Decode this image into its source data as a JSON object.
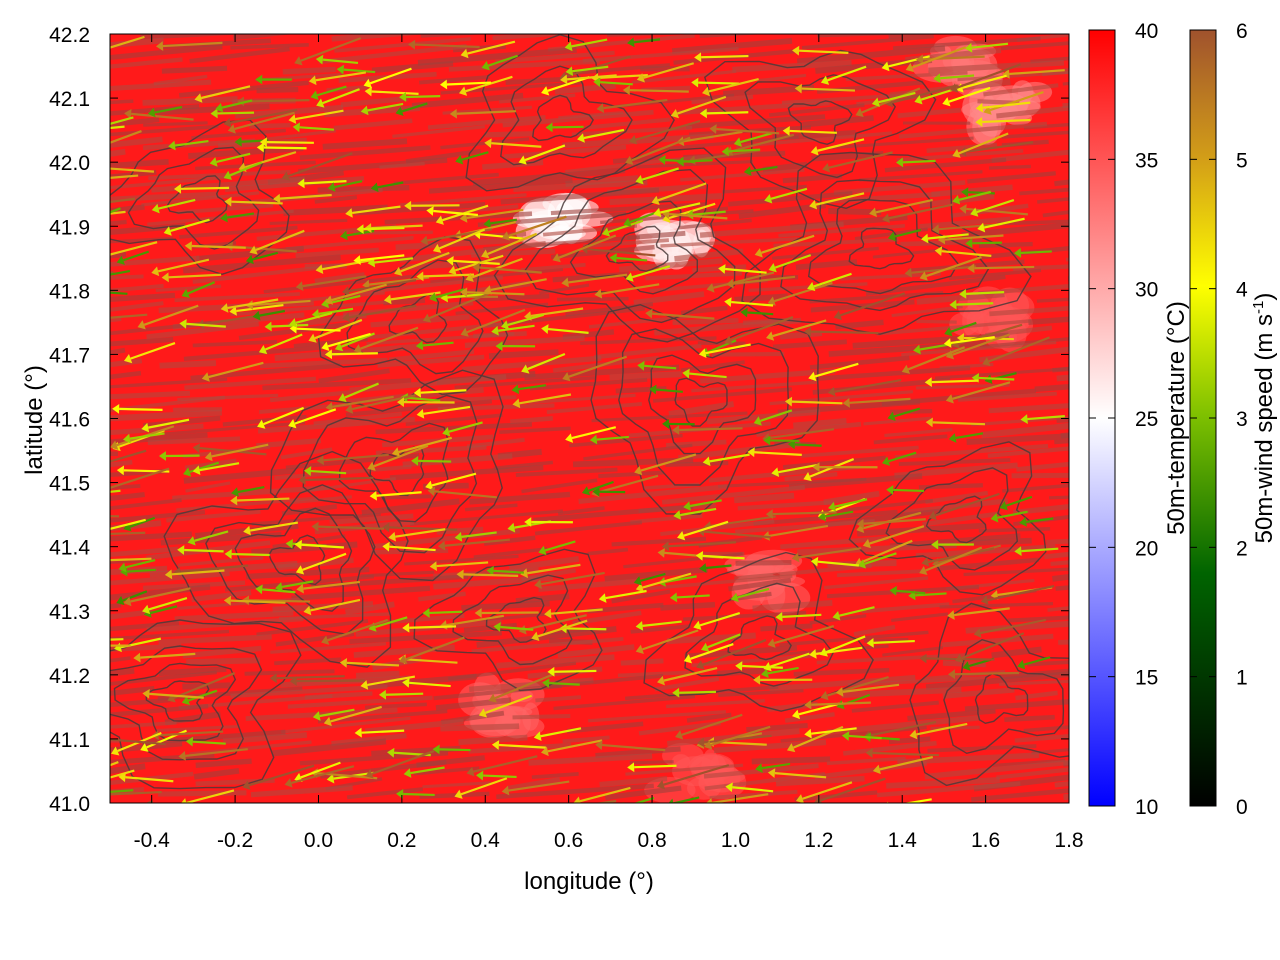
{
  "chart_data": {
    "type": "heatmap",
    "title": "",
    "xlabel": "longitude (°)",
    "ylabel": "latitude (°)",
    "xlim": [
      -0.5,
      1.8
    ],
    "ylim": [
      41.0,
      42.2
    ],
    "x_ticks": [
      -0.4,
      -0.2,
      0.0,
      0.2,
      0.4,
      0.6,
      0.8,
      1.0,
      1.2,
      1.4,
      1.6,
      1.8
    ],
    "x_tick_labels": [
      "-0.4",
      "-0.2",
      "0.0",
      "0.2",
      "0.4",
      "0.6",
      "0.8",
      "1.0",
      "1.2",
      "1.4",
      "1.6",
      "1.8"
    ],
    "y_ticks": [
      41.0,
      41.1,
      41.2,
      41.3,
      41.4,
      41.5,
      41.6,
      41.7,
      41.8,
      41.9,
      42.0,
      42.1,
      42.2
    ],
    "y_tick_labels": [
      "41.0",
      "41.1",
      "41.2",
      "41.3",
      "41.4",
      "41.5",
      "41.6",
      "41.7",
      "41.8",
      "41.9",
      "42.0",
      "42.1",
      "42.2"
    ],
    "grid": false,
    "temperature_colorbar": {
      "label": "50m-temperature (°C)",
      "range": [
        10,
        40
      ],
      "ticks": [
        10,
        15,
        20,
        25,
        30,
        35,
        40
      ],
      "tick_labels": [
        "10",
        "15",
        "20",
        "25",
        "30",
        "35",
        "40"
      ],
      "colors": [
        "#0000ff",
        "#ffffff",
        "#ff0000"
      ]
    },
    "wind_colorbar": {
      "label": "50m-wind speed (m s",
      "label_sup": "-1",
      "label_end": ")",
      "range": [
        0,
        6
      ],
      "ticks": [
        0,
        1,
        2,
        3,
        4,
        5,
        6
      ],
      "tick_labels": [
        "0",
        "1",
        "2",
        "3",
        "4",
        "5",
        "6"
      ],
      "colors": [
        "#000000",
        "#006400",
        "#7cbf00",
        "#ffff00",
        "#d4a017",
        "#a0522d"
      ]
    },
    "field_summary": {
      "dominant_temperature": 38,
      "cooler_patches": [
        {
          "lon": 0.58,
          "lat": 41.91,
          "temperature": 25
        },
        {
          "lon": 0.86,
          "lat": 41.88,
          "temperature": 26
        },
        {
          "lon": 1.55,
          "lat": 42.15,
          "temperature": 33
        },
        {
          "lon": 1.65,
          "lat": 42.08,
          "temperature": 32
        },
        {
          "lon": 0.45,
          "lat": 41.15,
          "temperature": 34
        },
        {
          "lon": 0.9,
          "lat": 41.05,
          "temperature": 35
        },
        {
          "lon": 1.1,
          "lat": 41.35,
          "temperature": 34
        },
        {
          "lon": 1.6,
          "lat": 41.75,
          "temperature": 35
        }
      ],
      "wind_direction": "mostly westward (from east)",
      "typical_wind_speed": 4
    }
  }
}
